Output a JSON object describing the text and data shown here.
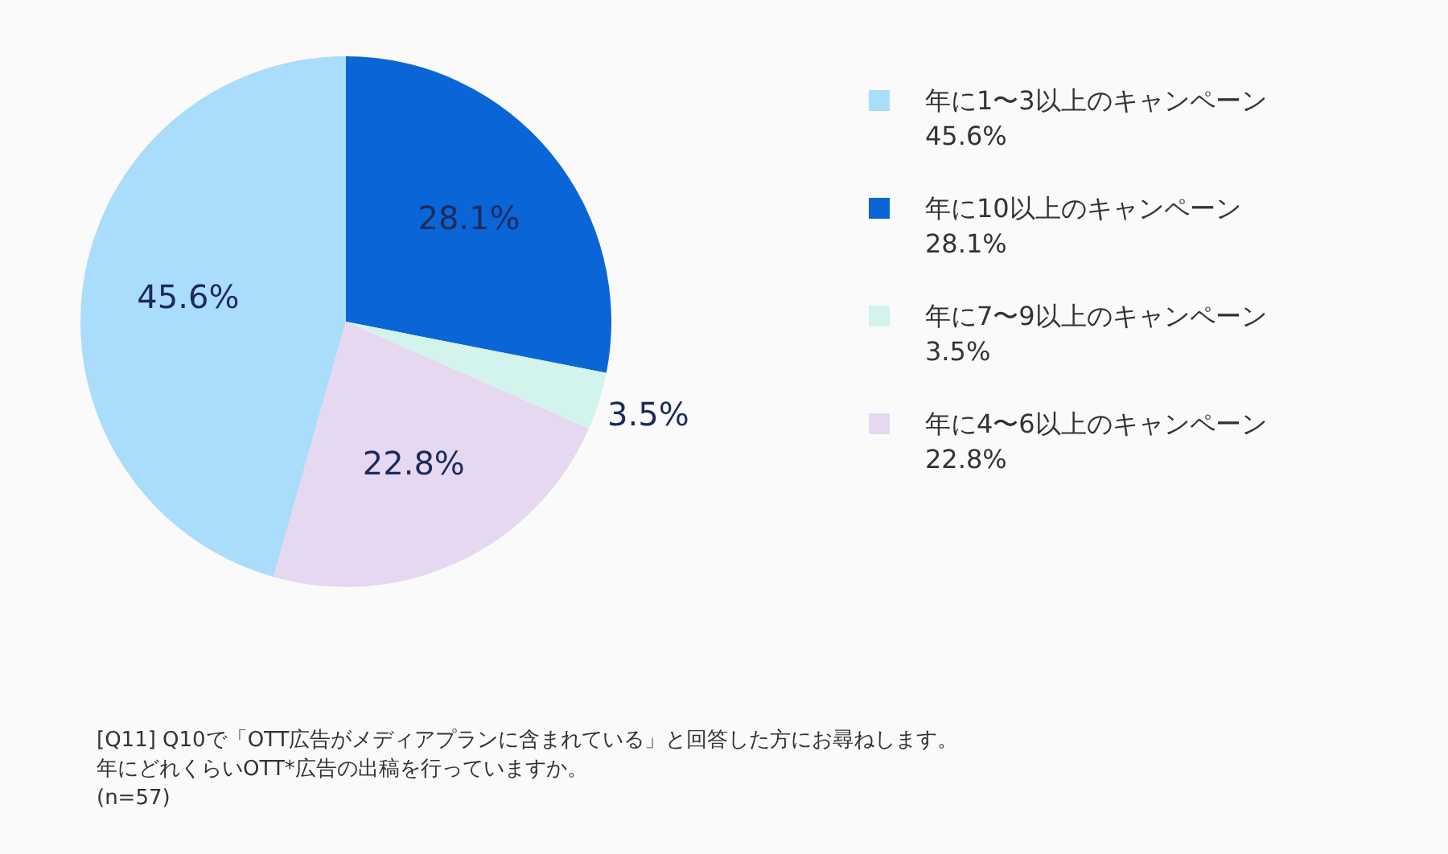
{
  "chart_data": {
    "type": "pie",
    "categories": [
      "年に1〜3以上のキャンペーン",
      "年に10以上のキャンペーン",
      "年に7〜9以上のキャンペーン",
      "年に4〜6以上のキャンペーン"
    ],
    "values": [
      45.6,
      28.1,
      3.5,
      22.8
    ],
    "value_labels": [
      "45.6%",
      "28.1%",
      "3.5%",
      "22.8%"
    ],
    "colors": [
      "#aadcfb",
      "#0a66d6",
      "#d2f4ec",
      "#e6d8f0"
    ],
    "legend": "right",
    "annotations": [
      "[Q11] Q10で「OTT広告がメディアプランに含まれている」と回答した方にお尋ねします。",
      "年にどれくらいOTT*広告の出稿を行っていますか。",
      "(n=57)"
    ]
  }
}
